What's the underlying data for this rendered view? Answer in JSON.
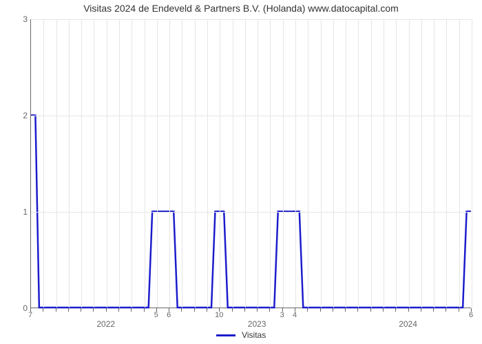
{
  "chart": {
    "type": "line",
    "title": "Visitas 2024 de Endeveld & Partners B.V. (Holanda) www.datocapital.com",
    "title_fontsize": 14,
    "background_color": "#ffffff",
    "grid_color": "#e5e5e5",
    "axis_color": "#666666",
    "line_color": "#1a1ccc",
    "line_width": 2.5,
    "ylim": [
      0,
      3
    ],
    "yticks": [
      0,
      1,
      2,
      3
    ],
    "x_count": 36,
    "x_year_labels": [
      {
        "idx": 6,
        "label": "2022"
      },
      {
        "idx": 18,
        "label": "2023"
      },
      {
        "idx": 30,
        "label": "2024"
      }
    ],
    "x_minor_labels": [
      {
        "idx": 0,
        "label": "7"
      },
      {
        "idx": 10,
        "label": "5"
      },
      {
        "idx": 11,
        "label": "6"
      },
      {
        "idx": 15,
        "label": "10"
      },
      {
        "idx": 20,
        "label": "3"
      },
      {
        "idx": 21,
        "label": "4"
      },
      {
        "idx": 35,
        "label": "6"
      }
    ],
    "values": [
      2,
      0,
      0,
      0,
      0,
      0,
      0,
      0,
      0,
      0,
      1,
      1,
      0,
      0,
      0,
      1,
      0,
      0,
      0,
      0,
      1,
      1,
      0,
      0,
      0,
      0,
      0,
      0,
      0,
      0,
      0,
      0,
      0,
      0,
      0,
      1
    ],
    "legend": {
      "label": "Visitas",
      "color": "#1a1ccc"
    }
  }
}
